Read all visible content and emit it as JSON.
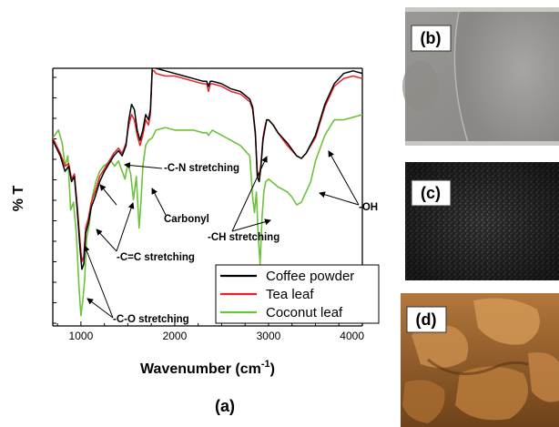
{
  "figure": {
    "panel_a_label": "(a)",
    "panel_b_label": "(b)",
    "panel_c_label": "(c)",
    "panel_d_label": "(d)"
  },
  "chart_data": {
    "type": "line",
    "xlabel": "Wavenumber (cm",
    "xlabel_sup": "-1",
    "xlabel_end": ")",
    "ylabel": "% T",
    "xlim": [
      700,
      4000
    ],
    "ylim": [
      0,
      100
    ],
    "x_ticks": [
      1000,
      2000,
      3000,
      4000
    ],
    "x_tick_labels": [
      "1000",
      "2000",
      "3000",
      "4000"
    ],
    "y_tick_labels_shown": false,
    "legend_position": "bottom-right",
    "series": [
      {
        "name": "Coffee powder",
        "color": "#000000",
        "x": [
          700,
          780,
          830,
          870,
          900,
          930,
          960,
          990,
          1010,
          1030,
          1050,
          1080,
          1110,
          1150,
          1200,
          1250,
          1300,
          1350,
          1400,
          1440,
          1480,
          1510,
          1540,
          1570,
          1600,
          1630,
          1660,
          1690,
          1720,
          1740,
          1760,
          1780,
          1800,
          1900,
          2000,
          2100,
          2200,
          2300,
          2340,
          2360,
          2380,
          2400,
          2500,
          2600,
          2700,
          2800,
          2830,
          2860,
          2880,
          2900,
          2920,
          2940,
          2960,
          2980,
          3000,
          3050,
          3100,
          3200,
          3300,
          3350,
          3400,
          3500,
          3600,
          3700,
          3800,
          3900,
          4000
        ],
        "y": [
          72,
          66,
          60,
          62,
          56,
          58,
          45,
          30,
          22,
          24,
          36,
          40,
          46,
          50,
          56,
          60,
          63,
          66,
          68,
          66,
          70,
          80,
          86,
          84,
          76,
          72,
          76,
          82,
          80,
          84,
          100,
          101,
          100,
          99,
          98,
          97,
          96,
          95,
          95,
          93,
          95,
          95,
          94,
          92,
          91,
          88,
          85,
          75,
          58,
          56,
          62,
          72,
          76,
          80,
          80,
          78,
          75,
          71,
          66,
          65,
          67,
          74,
          86,
          94,
          98,
          99,
          98
        ]
      },
      {
        "name": "Tea leaf",
        "color": "#e8222b",
        "x": [
          700,
          780,
          830,
          870,
          900,
          930,
          960,
          990,
          1010,
          1030,
          1050,
          1080,
          1110,
          1150,
          1200,
          1250,
          1300,
          1350,
          1400,
          1440,
          1480,
          1510,
          1540,
          1570,
          1600,
          1630,
          1660,
          1690,
          1720,
          1740,
          1760,
          1780,
          1800,
          1900,
          2000,
          2100,
          2200,
          2300,
          2340,
          2360,
          2380,
          2400,
          2500,
          2600,
          2700,
          2800,
          2830,
          2860,
          2880,
          2900,
          2920,
          2940,
          2960,
          2980,
          3000,
          3050,
          3100,
          3200,
          3300,
          3350,
          3400,
          3500,
          3600,
          3700,
          3800,
          3900,
          4000
        ],
        "y": [
          73,
          67,
          62,
          63,
          57,
          59,
          47,
          33,
          25,
          27,
          38,
          42,
          48,
          52,
          58,
          61,
          64,
          67,
          69,
          67,
          71,
          78,
          82,
          80,
          74,
          70,
          74,
          80,
          78,
          82,
          99,
          99,
          98,
          97,
          97,
          96,
          95,
          94,
          94,
          91,
          94,
          94,
          93,
          91,
          90,
          87,
          84,
          74,
          60,
          58,
          63,
          73,
          77,
          80,
          80,
          78,
          75,
          70,
          66,
          65,
          67,
          73,
          85,
          93,
          96,
          97,
          96
        ]
      },
      {
        "name": "Coconut leaf",
        "color": "#6cc23c",
        "x": [
          700,
          760,
          800,
          830,
          860,
          890,
          920,
          950,
          980,
          1000,
          1020,
          1040,
          1060,
          1090,
          1120,
          1160,
          1200,
          1240,
          1280,
          1320,
          1360,
          1400,
          1440,
          1470,
          1500,
          1530,
          1560,
          1590,
          1620,
          1640,
          1660,
          1690,
          1720,
          1760,
          1800,
          1900,
          2000,
          2100,
          2200,
          2300,
          2340,
          2360,
          2380,
          2400,
          2500,
          2600,
          2700,
          2800,
          2830,
          2850,
          2870,
          2890,
          2910,
          2930,
          2950,
          2970,
          3000,
          3100,
          3200,
          3250,
          3300,
          3350,
          3400,
          3450,
          3500,
          3600,
          3700,
          3800,
          3900,
          4000
        ],
        "y": [
          73,
          76,
          71,
          62,
          66,
          45,
          48,
          36,
          15,
          4,
          10,
          18,
          34,
          40,
          50,
          56,
          60,
          62,
          63,
          64,
          62,
          64,
          60,
          57,
          63,
          59,
          49,
          58,
          38,
          48,
          62,
          70,
          72,
          73,
          76,
          77,
          76,
          76,
          76,
          75,
          75,
          74,
          75,
          76,
          74,
          72,
          70,
          66,
          50,
          44,
          52,
          35,
          24,
          42,
          52,
          56,
          57,
          54,
          52,
          50,
          47,
          48,
          52,
          56,
          64,
          74,
          80,
          80,
          81,
          82
        ]
      }
    ],
    "annotations": [
      {
        "text": "-C-N stretching"
      },
      {
        "text": "Carbonyl"
      },
      {
        "text": "-C=C stretching"
      },
      {
        "text": "-C-O stretching"
      },
      {
        "text": "-CH stretching"
      },
      {
        "text": "-OH"
      }
    ]
  }
}
